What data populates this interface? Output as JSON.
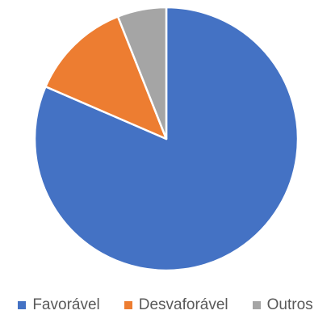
{
  "chart_data": {
    "type": "pie",
    "title": "",
    "categories": [
      "Favorável",
      "Desvaforável",
      "Outros"
    ],
    "values": [
      81.5,
      12.5,
      6.0
    ],
    "colors": [
      "#4472C4",
      "#ED7D31",
      "#A5A5A5"
    ],
    "start_angle_deg": 0,
    "direction": "clockwise",
    "legend_position": "bottom"
  }
}
